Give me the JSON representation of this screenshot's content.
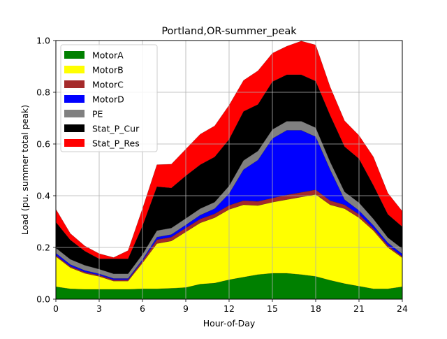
{
  "chart_data": {
    "type": "area",
    "stacked": true,
    "title": "Portland,OR-summer_peak",
    "xlabel": "Hour-of-Day",
    "ylabel": "Load (pu. summer total peak)",
    "xlim": [
      0,
      24
    ],
    "ylim": [
      0,
      1.0
    ],
    "xticks": [
      0,
      3,
      6,
      9,
      12,
      15,
      18,
      21,
      24
    ],
    "xtick_labels": [
      "0",
      "3",
      "6",
      "9",
      "12",
      "15",
      "18",
      "21",
      "24"
    ],
    "yticks": [
      0.0,
      0.2,
      0.4,
      0.6,
      0.8,
      1.0
    ],
    "ytick_labels": [
      "0.0",
      "0.2",
      "0.4",
      "0.6",
      "0.8",
      "1.0"
    ],
    "grid": true,
    "legend_position": "upper-left",
    "x": [
      0,
      1,
      2,
      3,
      4,
      5,
      6,
      7,
      8,
      9,
      10,
      11,
      12,
      13,
      14,
      15,
      16,
      17,
      18,
      19,
      20,
      21,
      22,
      23,
      24
    ],
    "series": [
      {
        "name": "MotorA",
        "color": "#008000",
        "values": [
          0.048,
          0.04,
          0.038,
          0.038,
          0.038,
          0.038,
          0.04,
          0.04,
          0.042,
          0.045,
          0.058,
          0.062,
          0.075,
          0.085,
          0.095,
          0.1,
          0.1,
          0.095,
          0.088,
          0.073,
          0.06,
          0.05,
          0.04,
          0.04,
          0.048
        ]
      },
      {
        "name": "MotorB",
        "color": "#ffff00",
        "values": [
          0.117,
          0.082,
          0.062,
          0.05,
          0.032,
          0.032,
          0.1,
          0.175,
          0.183,
          0.215,
          0.237,
          0.253,
          0.272,
          0.28,
          0.267,
          0.275,
          0.285,
          0.3,
          0.317,
          0.292,
          0.29,
          0.265,
          0.225,
          0.16,
          0.112
        ]
      },
      {
        "name": "MotorC",
        "color": "#a52a2a",
        "values": [
          0.005,
          0.005,
          0.005,
          0.005,
          0.005,
          0.005,
          0.008,
          0.015,
          0.015,
          0.015,
          0.015,
          0.015,
          0.016,
          0.016,
          0.016,
          0.016,
          0.018,
          0.018,
          0.018,
          0.016,
          0.015,
          0.013,
          0.008,
          0.008,
          0.005
        ]
      },
      {
        "name": "MotorD",
        "color": "#0000ff",
        "values": [
          0.008,
          0.007,
          0.006,
          0.005,
          0.005,
          0.005,
          0.005,
          0.01,
          0.01,
          0.012,
          0.015,
          0.02,
          0.045,
          0.12,
          0.16,
          0.23,
          0.25,
          0.24,
          0.205,
          0.12,
          0.02,
          0.015,
          0.012,
          0.01,
          0.01
        ]
      },
      {
        "name": "PE",
        "color": "#808080",
        "values": [
          0.02,
          0.02,
          0.02,
          0.018,
          0.018,
          0.018,
          0.02,
          0.025,
          0.025,
          0.025,
          0.025,
          0.025,
          0.03,
          0.035,
          0.035,
          0.035,
          0.035,
          0.035,
          0.035,
          0.03,
          0.03,
          0.03,
          0.025,
          0.02,
          0.02
        ]
      },
      {
        "name": "Stat_P_Cur",
        "color": "#000000",
        "values": [
          0.1,
          0.075,
          0.055,
          0.04,
          0.058,
          0.058,
          0.11,
          0.17,
          0.155,
          0.165,
          0.17,
          0.175,
          0.18,
          0.19,
          0.18,
          0.185,
          0.18,
          0.18,
          0.18,
          0.18,
          0.175,
          0.17,
          0.13,
          0.09,
          0.085
        ]
      },
      {
        "name": "Stat_P_Res",
        "color": "#ff0000",
        "values": [
          0.05,
          0.025,
          0.02,
          0.02,
          0.005,
          0.032,
          0.067,
          0.085,
          0.092,
          0.103,
          0.118,
          0.12,
          0.132,
          0.12,
          0.13,
          0.11,
          0.11,
          0.13,
          0.14,
          0.11,
          0.1,
          0.09,
          0.11,
          0.082,
          0.06
        ]
      }
    ]
  }
}
